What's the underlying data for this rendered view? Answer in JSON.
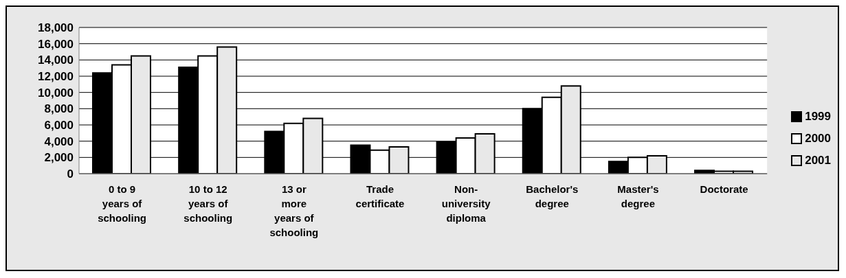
{
  "chart_data": {
    "type": "bar",
    "categories": [
      "0 to 9 years of schooling",
      "10 to 12 years of schooling",
      "13 or more years of schooling",
      "Trade certificate",
      "Non-university diploma",
      "Bachelor's degree",
      "Master's degree",
      "Doctorate"
    ],
    "series": [
      {
        "name": "1999",
        "color": "#000000",
        "values": [
          12400,
          13100,
          5200,
          3500,
          3900,
          8000,
          1500,
          400
        ]
      },
      {
        "name": "2000",
        "color": "#ffffff",
        "values": [
          13400,
          14500,
          6200,
          2900,
          4400,
          9400,
          2000,
          300
        ]
      },
      {
        "name": "2001",
        "color": "#e8e8e8",
        "values": [
          14500,
          15600,
          6800,
          3300,
          4900,
          10800,
          2200,
          300
        ]
      }
    ],
    "ylim": [
      0,
      18000
    ],
    "yticks": [
      0,
      {
        "value": 2000,
        "label": "2,000"
      },
      {
        "value": 4000,
        "label": "4,000"
      },
      {
        "value": 6000,
        "label": "6,000"
      },
      {
        "value": 8000,
        "label": "8,000"
      },
      {
        "value": 10000,
        "label": "10,000"
      },
      {
        "value": 12000,
        "label": "12,000"
      },
      {
        "value": 14000,
        "label": "14,000"
      },
      {
        "value": 16000,
        "label": "16,000"
      },
      {
        "value": 18000,
        "label": "18,000"
      }
    ],
    "grid": "y",
    "legend": "right"
  }
}
